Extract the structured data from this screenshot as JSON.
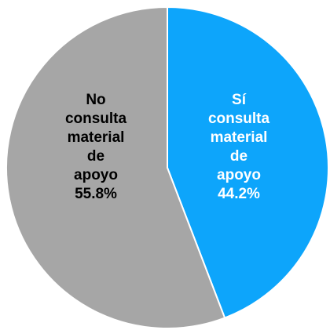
{
  "chart_data": {
    "type": "pie",
    "title": "",
    "slices": [
      {
        "label_lines": [
          "Sí",
          "consulta",
          "material",
          "de",
          "apoyo"
        ],
        "value": 44.2,
        "value_label": "44.2%",
        "color": "#0DA5FB",
        "text_color": "#FFFFFF"
      },
      {
        "label_lines": [
          "No",
          "consulta",
          "material",
          "de",
          "apoyo"
        ],
        "value": 55.8,
        "value_label": "55.8%",
        "color": "#A6A6A6",
        "text_color": "#000000"
      }
    ],
    "start_angle": "12 o'clock",
    "direction": "clockwise",
    "separator_color": "#FFFFFF",
    "legend": "none"
  }
}
